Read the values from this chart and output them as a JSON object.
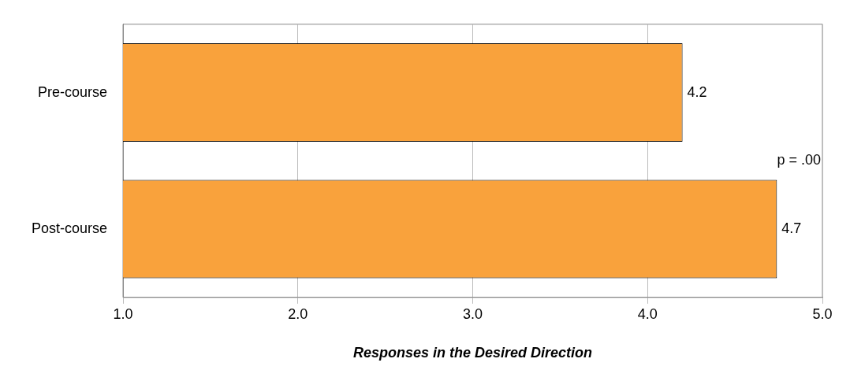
{
  "chart_data": {
    "type": "bar",
    "orientation": "horizontal",
    "categories": [
      "Pre-course",
      "Post-course"
    ],
    "values": [
      4.2,
      4.74
    ],
    "value_labels": [
      "4.2",
      "4.7"
    ],
    "color": "#f9a23c",
    "xlabel": "Responses in the Desired Direction",
    "xlim": [
      1,
      5
    ],
    "xticks": [
      {
        "value": 1,
        "label": "1.0"
      },
      {
        "value": 2,
        "label": "2.0"
      },
      {
        "value": 3,
        "label": "3.0"
      },
      {
        "value": 4,
        "label": "4.0"
      },
      {
        "value": 5,
        "label": "5.0"
      }
    ],
    "grid": "x",
    "annotations": [
      "p = .00"
    ]
  }
}
